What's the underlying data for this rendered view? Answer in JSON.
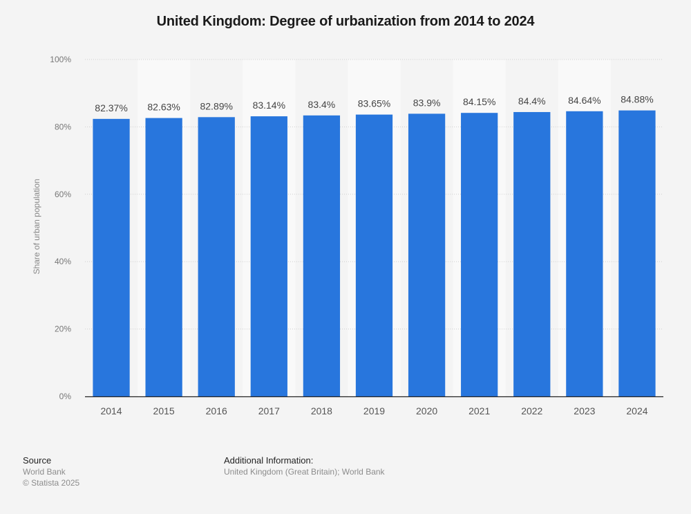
{
  "chart_data": {
    "type": "bar",
    "title": "United Kingdom: Degree of urbanization from 2014 to 2024",
    "xlabel": "",
    "ylabel": "Share of urban population",
    "ylim": [
      0,
      100
    ],
    "yticks": [
      0,
      20,
      40,
      60,
      80,
      100
    ],
    "ytick_labels": [
      "0%",
      "20%",
      "40%",
      "60%",
      "80%",
      "100%"
    ],
    "grid": true,
    "legend": "none",
    "categories": [
      "2014",
      "2015",
      "2016",
      "2017",
      "2018",
      "2019",
      "2020",
      "2021",
      "2022",
      "2023",
      "2024"
    ],
    "values": [
      82.37,
      82.63,
      82.89,
      83.14,
      83.4,
      83.65,
      83.9,
      84.15,
      84.4,
      84.64,
      84.88
    ],
    "data_labels": [
      "82.37%",
      "82.63%",
      "82.89%",
      "83.14%",
      "83.4%",
      "83.65%",
      "83.9%",
      "84.15%",
      "84.4%",
      "84.64%",
      "84.88%"
    ],
    "bar_color": "#2876dd"
  },
  "footer": {
    "source_heading": "Source",
    "source_name": "World Bank",
    "copyright": "© Statista 2025",
    "additional_heading": "Additional Information:",
    "additional_text": "United Kingdom (Great Britain); World Bank"
  }
}
